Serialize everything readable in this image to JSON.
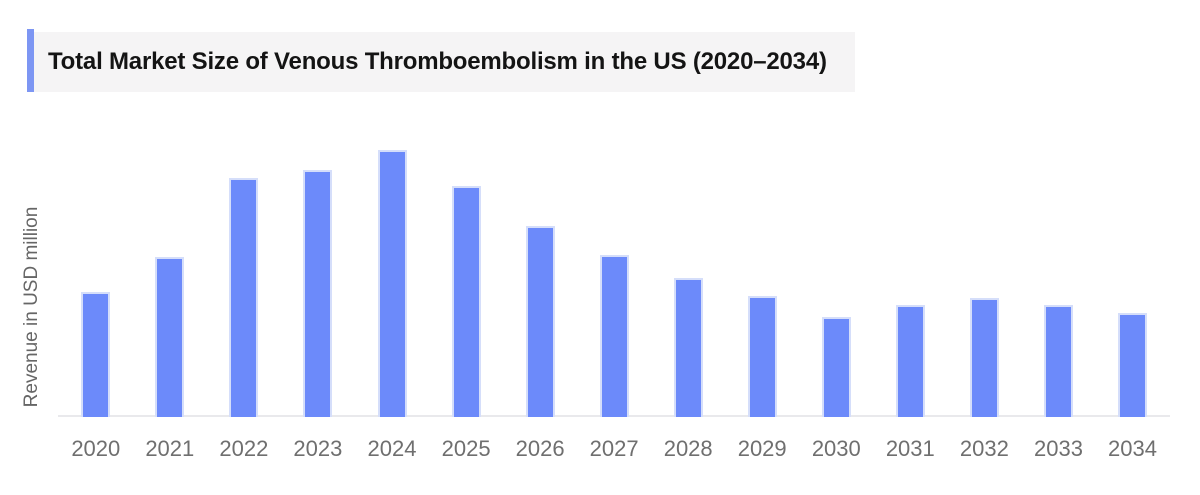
{
  "header": {
    "title": "Total Market Size of Venous Thromboembolism in the US (2020–2034)"
  },
  "chart_data": {
    "type": "bar",
    "title": "Total Market Size of Venous Thromboembolism in the US (2020–2034)",
    "xlabel": "",
    "ylabel": "Revenue in USD million",
    "categories": [
      "2020",
      "2021",
      "2022",
      "2023",
      "2024",
      "2025",
      "2026",
      "2027",
      "2028",
      "2029",
      "2030",
      "2031",
      "2032",
      "2033",
      "2034"
    ],
    "values": [
      46.8,
      59.9,
      89.5,
      92.5,
      100,
      86.7,
      71.5,
      60.7,
      52.1,
      45.5,
      37.3,
      41.9,
      44.6,
      41.8,
      38.8
    ],
    "values_unit": "percent of tallest bar (2024 = 100); the chart displays no numeric y-axis tick labels",
    "ylim": [
      0,
      100
    ],
    "grid": false,
    "legend": false,
    "y_tick_labels_visible": false,
    "x_tick_labels_visible": true
  },
  "colors": {
    "bar_fill": "#6c8afa",
    "bar_edge": "#d5defa",
    "accent_bar": "#7d96f3",
    "title_bg": "#f5f4f5",
    "title_text": "#141414",
    "axis_line": "#e9e9ec",
    "tick_label_text": "#6f6f6f",
    "ylabel_text": "#666666"
  }
}
